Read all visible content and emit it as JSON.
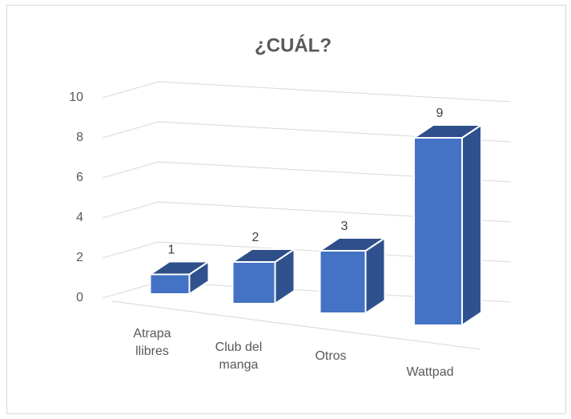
{
  "chart_data": {
    "type": "bar3d",
    "title": "¿CUÁL?",
    "categories": [
      "Atrapa llibres",
      "Club del manga",
      "Otros",
      "Wattpad"
    ],
    "values": [
      1,
      2,
      3,
      9
    ],
    "color": "#4472c4",
    "ylim": [
      0,
      10
    ],
    "yticks": [
      0,
      2,
      4,
      6,
      8,
      10
    ],
    "grid": true,
    "data_labels": true
  }
}
